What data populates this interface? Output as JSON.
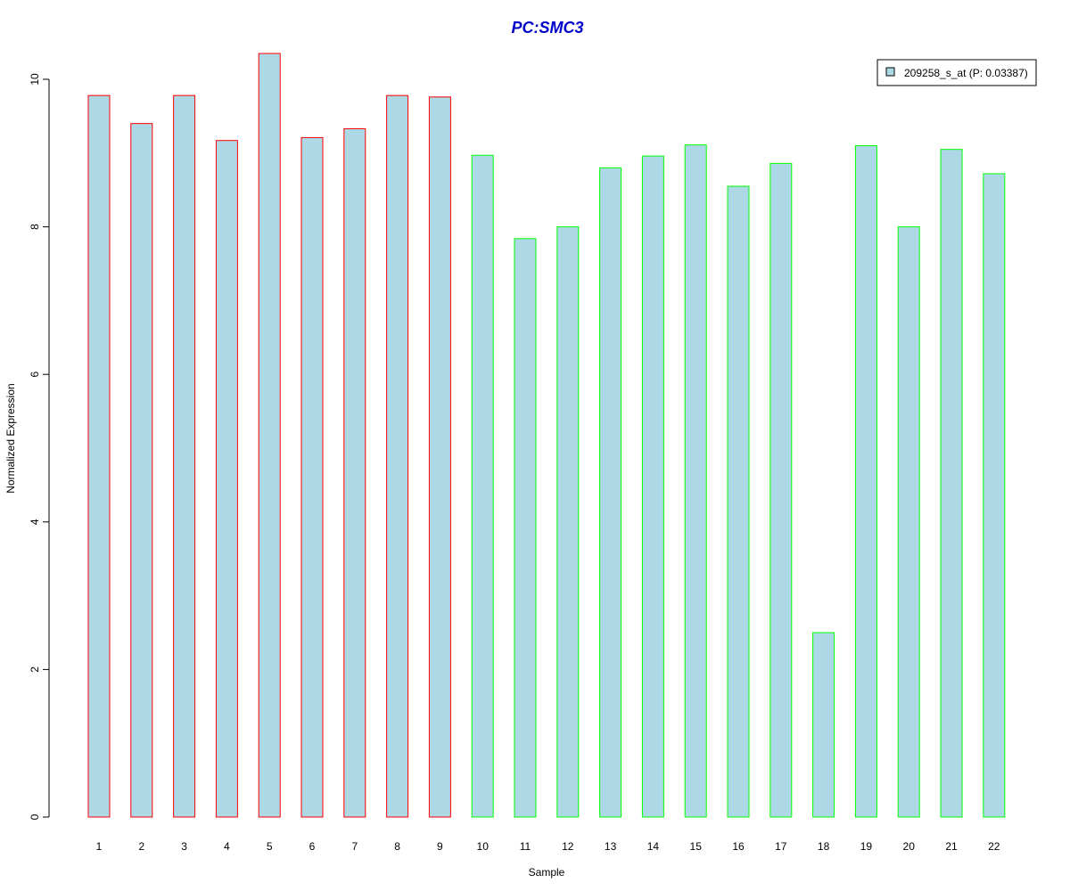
{
  "chart_data": {
    "type": "bar",
    "title": "PC:SMC3",
    "xlabel": "Sample",
    "ylabel": "Normalized Expression",
    "categories": [
      "1",
      "2",
      "3",
      "4",
      "5",
      "6",
      "7",
      "8",
      "9",
      "10",
      "11",
      "12",
      "13",
      "14",
      "15",
      "16",
      "17",
      "18",
      "19",
      "20",
      "21",
      "22"
    ],
    "series": [
      {
        "name": "209258_s_at (P: 0.03387)",
        "values": [
          9.78,
          9.4,
          9.78,
          9.17,
          10.35,
          9.21,
          9.33,
          9.78,
          9.76,
          8.97,
          7.84,
          8.0,
          8.8,
          8.96,
          9.11,
          8.55,
          8.86,
          2.5,
          9.1,
          8.0,
          9.05,
          8.72
        ]
      }
    ],
    "groups": [
      1,
      1,
      1,
      1,
      1,
      1,
      1,
      1,
      1,
      2,
      2,
      2,
      2,
      2,
      2,
      2,
      2,
      2,
      2,
      2,
      2,
      2
    ],
    "yticks": [
      0,
      2,
      4,
      6,
      8,
      10
    ],
    "ylim": [
      0,
      10.35
    ],
    "grid": false,
    "legend_position": "top-right",
    "colors": {
      "title": "#0000cc",
      "fill": "#add8e6",
      "group1_border": "#ff0000",
      "group2_border": "#00ff00",
      "axis": "#000000"
    }
  }
}
